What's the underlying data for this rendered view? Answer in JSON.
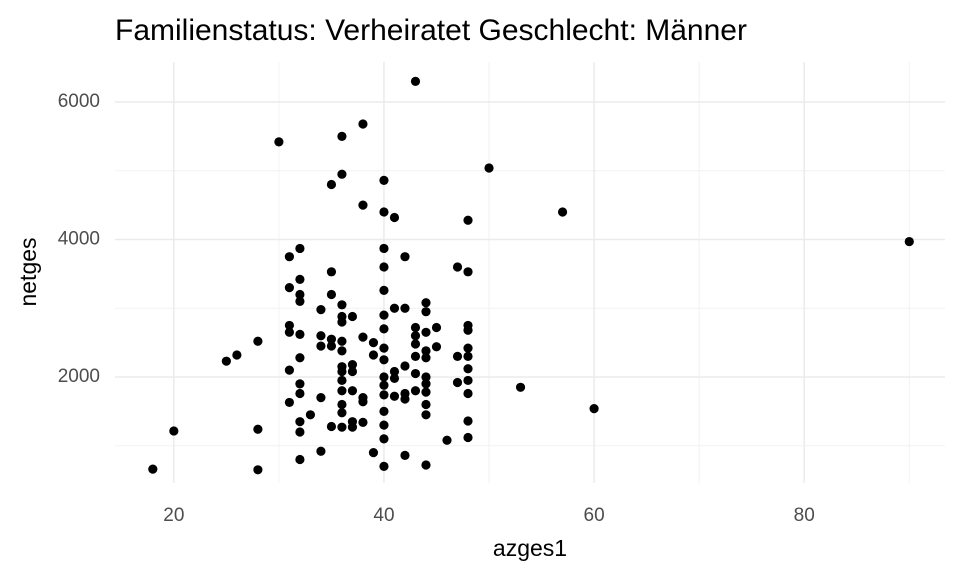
{
  "chart_data": {
    "type": "scatter",
    "title": "Familienstatus: Verheiratet Geschlecht: Männer",
    "xlabel": "azges1",
    "ylabel": "netges",
    "xlim": [
      14.4,
      93.4
    ],
    "ylim": [
      458,
      6582
    ],
    "xticks": [
      20,
      40,
      60,
      80
    ],
    "yticks": [
      2000,
      4000,
      6000
    ],
    "xminor": [
      30,
      50,
      70,
      90
    ],
    "yminor": [
      1000,
      3000,
      5000
    ],
    "grid": true,
    "color": "#000000",
    "x": [
      18,
      20,
      25,
      26,
      28,
      28,
      28,
      30,
      31,
      31,
      31,
      31,
      31,
      31,
      32,
      32,
      32,
      32,
      32,
      32,
      32,
      32,
      32,
      32,
      32,
      33,
      34,
      34,
      34,
      34,
      34,
      35,
      35,
      35,
      35,
      35,
      35,
      36,
      36,
      36,
      36,
      36,
      36,
      36,
      36,
      36,
      36,
      36,
      36,
      36,
      36,
      37,
      37,
      37,
      37,
      37,
      37,
      38,
      38,
      38,
      38,
      38,
      38,
      39,
      39,
      39,
      40,
      40,
      40,
      40,
      40,
      40,
      40,
      40,
      40,
      40,
      40,
      40,
      40,
      40,
      40,
      40,
      41,
      41,
      41,
      41,
      41,
      42,
      42,
      42,
      42,
      42,
      42,
      43,
      43,
      43,
      43,
      43,
      43,
      43,
      44,
      44,
      44,
      44,
      44,
      44,
      44,
      44,
      44,
      44,
      44,
      45,
      45,
      46,
      47,
      47,
      47,
      48,
      48,
      48,
      48,
      48,
      48,
      48,
      48,
      48,
      48,
      48,
      50,
      53,
      57,
      60,
      90
    ],
    "y": [
      660,
      1215,
      2230,
      2320,
      650,
      1240,
      2520,
      5420,
      3300,
      3750,
      2750,
      2650,
      2100,
      1630,
      3870,
      3420,
      3200,
      3100,
      2620,
      2280,
      1900,
      1760,
      1350,
      1200,
      800,
      1450,
      2980,
      2600,
      2450,
      1700,
      920,
      4800,
      3530,
      3200,
      2550,
      2450,
      1280,
      5500,
      4950,
      3050,
      2880,
      2800,
      2520,
      2380,
      2150,
      2080,
      1950,
      1800,
      1600,
      1480,
      1270,
      2880,
      2180,
      2080,
      1800,
      1270,
      1350,
      5680,
      4500,
      2580,
      1700,
      1640,
      1340,
      2500,
      2320,
      900,
      4860,
      4400,
      3870,
      3600,
      3260,
      2900,
      2700,
      2420,
      2250,
      2000,
      1880,
      1740,
      1500,
      1300,
      1100,
      700,
      4320,
      3000,
      2080,
      1980,
      1720,
      3750,
      3000,
      2160,
      1760,
      1680,
      860,
      6300,
      2720,
      2600,
      2480,
      2300,
      2050,
      1800,
      3080,
      2950,
      2650,
      2380,
      2280,
      2000,
      1900,
      1780,
      1600,
      1450,
      720,
      2720,
      2440,
      1080,
      3600,
      2300,
      1920,
      4280,
      3530,
      2750,
      2680,
      2420,
      2300,
      2120,
      1950,
      1760,
      1360,
      1120,
      5040,
      1850,
      4400,
      1540,
      3970
    ]
  }
}
